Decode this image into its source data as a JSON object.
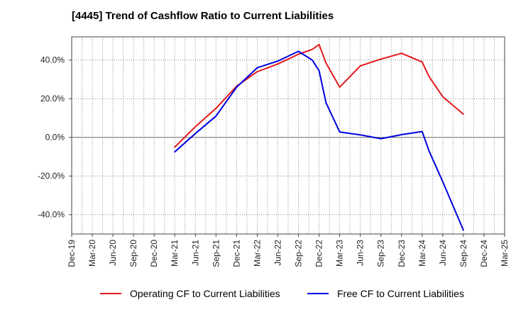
{
  "chart_data": {
    "type": "line",
    "title": "[4445]  Trend of Cashflow Ratio to Current Liabilities",
    "xlabel": "",
    "ylabel": "",
    "ylim": [
      -50,
      52
    ],
    "y_ticks": [
      -40,
      -20,
      0,
      20,
      40
    ],
    "y_tick_labels": [
      "-40.0%",
      "-20.0%",
      "0.0%",
      "20.0%",
      "40.0%"
    ],
    "x_ticks": [
      "Dec-19",
      "Mar-20",
      "Jun-20",
      "Sep-20",
      "Dec-20",
      "Mar-21",
      "Jun-21",
      "Sep-21",
      "Dec-21",
      "Mar-22",
      "Jun-22",
      "Sep-22",
      "Dec-22",
      "Mar-23",
      "Jun-23",
      "Sep-23",
      "Dec-23",
      "Mar-24",
      "Jun-24",
      "Sep-24",
      "Dec-24",
      "Mar-25"
    ],
    "x_tick_labels": [
      "Dec-19",
      "Mar-20",
      "Jun-20",
      "Sep-20",
      "Dec-20",
      "Mar-21",
      "Jun-21",
      "Sep-21",
      "Dec-21",
      "Mar-22",
      "Jun-22",
      "Sep-22",
      "Dec-22",
      "Mar-23",
      "Jun-23",
      "Sep-23",
      "Dec-23",
      "Mar-24",
      "Jun-24",
      "Sep-24",
      "Dec-24",
      "Mar-25"
    ],
    "grid": true,
    "legend_position": "bottom",
    "series": [
      {
        "name": "Operating CF to Current Liabilities",
        "color": "#e31a1c",
        "x": [
          "Mar-21",
          "Jun-21",
          "Sep-21",
          "Dec-21",
          "Mar-22",
          "Jun-22",
          "Sep-22",
          "Nov-22",
          "Dec-22",
          "Jan-23",
          "Mar-23",
          "Jun-23",
          "Sep-23",
          "Dec-23",
          "Mar-24",
          "Apr-24",
          "Jun-24",
          "Sep-24"
        ],
        "values": [
          -5.0,
          5.5,
          15.0,
          26.5,
          34.0,
          38.0,
          43.0,
          45.5,
          48.0,
          38.5,
          26.0,
          37.0,
          40.5,
          43.5,
          39.0,
          31.5,
          21.0,
          12.0
        ]
      },
      {
        "name": "Free CF to Current Liabilities",
        "color": "#0000e0",
        "x": [
          "Mar-21",
          "Jun-21",
          "Sep-21",
          "Dec-21",
          "Mar-22",
          "Jun-22",
          "Sep-22",
          "Nov-22",
          "Dec-22",
          "Jan-23",
          "Mar-23",
          "Jun-23",
          "Sep-23",
          "Dec-23",
          "Mar-24",
          "Apr-24",
          "Jun-24",
          "Sep-24"
        ],
        "values": [
          -7.5,
          2.0,
          11.0,
          26.0,
          36.0,
          39.5,
          44.5,
          40.0,
          34.5,
          18.0,
          2.8,
          1.3,
          -0.7,
          1.4,
          3.0,
          -7.0,
          -23.0,
          -48.0
        ]
      }
    ]
  },
  "legend": {
    "items": [
      {
        "label": "Operating CF to Current Liabilities",
        "color": "#e31a1c"
      },
      {
        "label": "Free CF to Current Liabilities",
        "color": "#0000e0"
      }
    ]
  }
}
